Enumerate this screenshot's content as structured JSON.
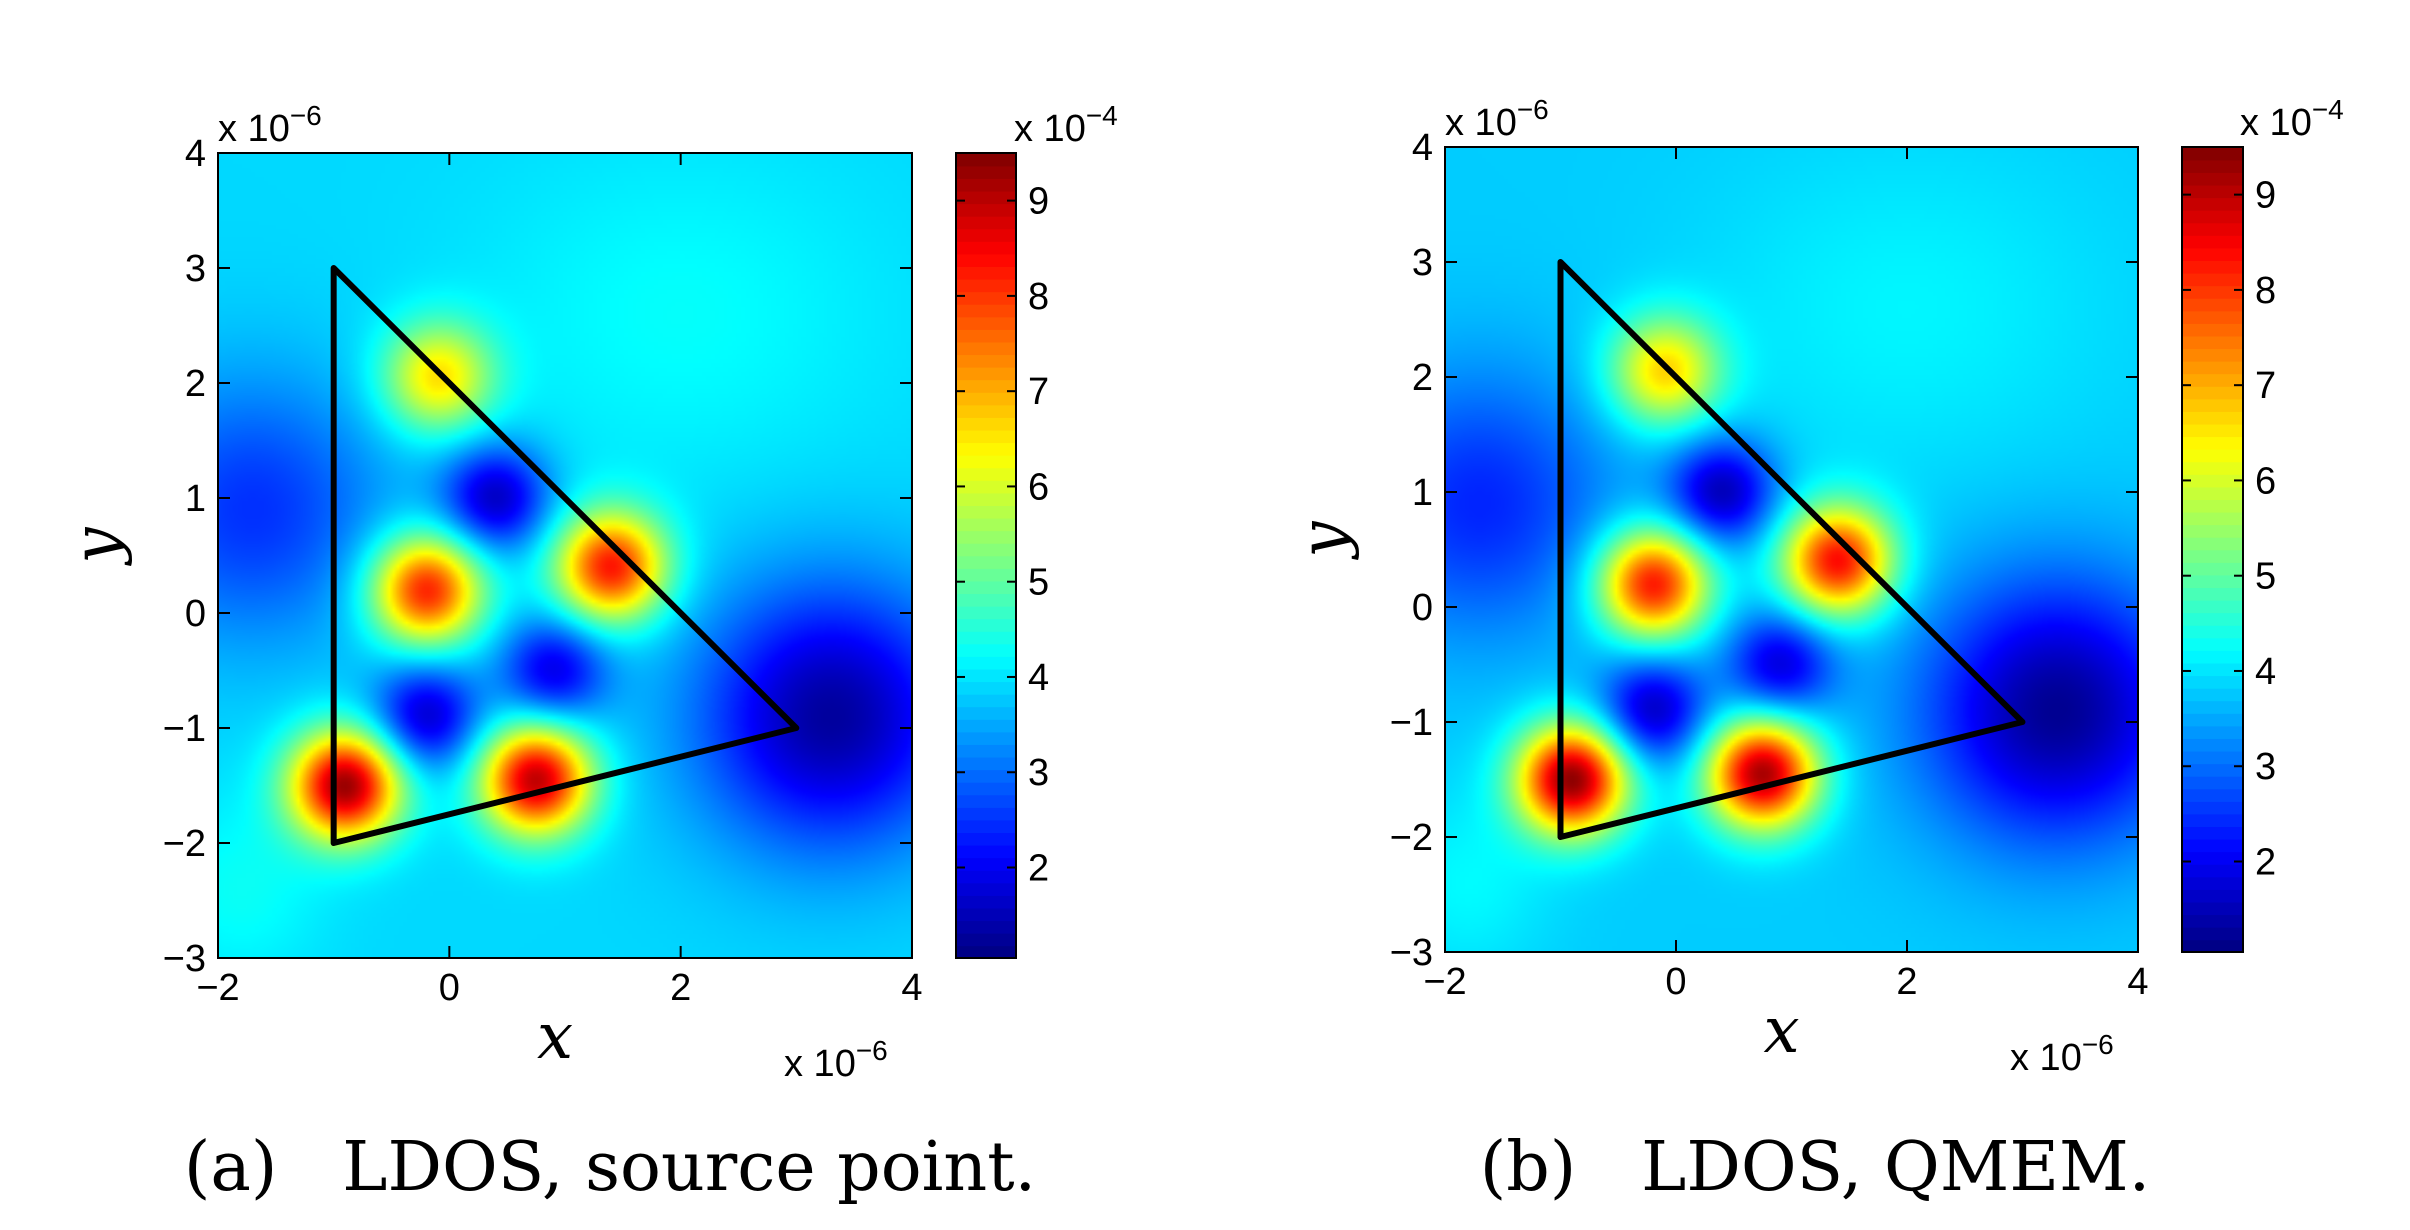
{
  "chart_data": [
    {
      "type": "heatmap",
      "caption": "(a)   LDOS, source point.",
      "xlabel": "x",
      "ylabel": "y",
      "x_multiplier": "x 10",
      "x_multiplier_exp": "−6",
      "y_multiplier": "x 10",
      "y_multiplier_exp": "−6",
      "colorbar_multiplier": "x 10",
      "colorbar_multiplier_exp": "−4",
      "xlim": [
        -2,
        4
      ],
      "ylim": [
        -3,
        4
      ],
      "xticks": [
        "−2",
        "0",
        "2",
        "4"
      ],
      "xtick_values": [
        -2,
        0,
        2,
        4
      ],
      "yticks": [
        "4",
        "3",
        "2",
        "1",
        "0",
        "−1",
        "−2",
        "−3"
      ],
      "ytick_values": [
        4,
        3,
        2,
        1,
        0,
        -1,
        -2,
        -3
      ],
      "colorbar_range": [
        1.05,
        9.5
      ],
      "colorbar_ticks": [
        "9",
        "8",
        "7",
        "6",
        "5",
        "4",
        "3",
        "2"
      ],
      "colorbar_tick_values": [
        9,
        8,
        7,
        6,
        5,
        4,
        3,
        2
      ],
      "colormap": "jet",
      "background_level": 3.9,
      "triangle": [
        [
          -1,
          3
        ],
        [
          3,
          -1
        ],
        [
          -1,
          -2
        ]
      ],
      "peaks": [
        {
          "x": -0.9,
          "y": -1.5,
          "value": 9.3
        },
        {
          "x": 0.75,
          "y": -1.45,
          "value": 9.0
        },
        {
          "x": -0.2,
          "y": 0.2,
          "value": 8.3
        },
        {
          "x": 1.4,
          "y": 0.4,
          "value": 8.3
        },
        {
          "x": -0.1,
          "y": 2.05,
          "value": 6.6
        }
      ],
      "dips": [
        {
          "x": 0.4,
          "y": 1.0,
          "value": 1.6
        },
        {
          "x": -0.2,
          "y": -0.9,
          "value": 1.7
        },
        {
          "x": 0.9,
          "y": -0.5,
          "value": 1.9
        },
        {
          "x": 3.3,
          "y": -0.9,
          "value": 1.3
        },
        {
          "x": -1.7,
          "y": 0.9,
          "value": 2.5
        }
      ]
    },
    {
      "type": "heatmap",
      "caption": "(b)   LDOS, QMEM.",
      "xlabel": "x",
      "ylabel": "y",
      "x_multiplier": "x 10",
      "x_multiplier_exp": "−6",
      "y_multiplier": "x 10",
      "y_multiplier_exp": "−6",
      "colorbar_multiplier": "x 10",
      "colorbar_multiplier_exp": "−4",
      "xlim": [
        -2,
        4
      ],
      "ylim": [
        -3,
        4
      ],
      "xticks": [
        "−2",
        "0",
        "2",
        "4"
      ],
      "xtick_values": [
        -2,
        0,
        2,
        4
      ],
      "yticks": [
        "4",
        "3",
        "2",
        "1",
        "0",
        "−1",
        "−2",
        "−3"
      ],
      "ytick_values": [
        4,
        3,
        2,
        1,
        0,
        -1,
        -2,
        -3
      ],
      "colorbar_range": [
        1.05,
        9.5
      ],
      "colorbar_ticks": [
        "9",
        "8",
        "7",
        "6",
        "5",
        "4",
        "3",
        "2"
      ],
      "colorbar_tick_values": [
        9,
        8,
        7,
        6,
        5,
        4,
        3,
        2
      ],
      "colormap": "jet",
      "background_level": 3.8,
      "triangle": [
        [
          -1,
          3
        ],
        [
          3,
          -1
        ],
        [
          -1,
          -2
        ]
      ],
      "peaks": [
        {
          "x": -0.9,
          "y": -1.5,
          "value": 9.4
        },
        {
          "x": 0.75,
          "y": -1.45,
          "value": 9.2
        },
        {
          "x": -0.2,
          "y": 0.2,
          "value": 8.4
        },
        {
          "x": 1.4,
          "y": 0.4,
          "value": 8.4
        },
        {
          "x": -0.1,
          "y": 2.05,
          "value": 6.7
        }
      ],
      "dips": [
        {
          "x": 0.4,
          "y": 1.0,
          "value": 1.5
        },
        {
          "x": -0.2,
          "y": -0.9,
          "value": 1.6
        },
        {
          "x": 0.9,
          "y": -0.5,
          "value": 1.8
        },
        {
          "x": 3.3,
          "y": -0.9,
          "value": 1.2
        },
        {
          "x": -1.7,
          "y": 0.9,
          "value": 2.4
        }
      ]
    }
  ]
}
